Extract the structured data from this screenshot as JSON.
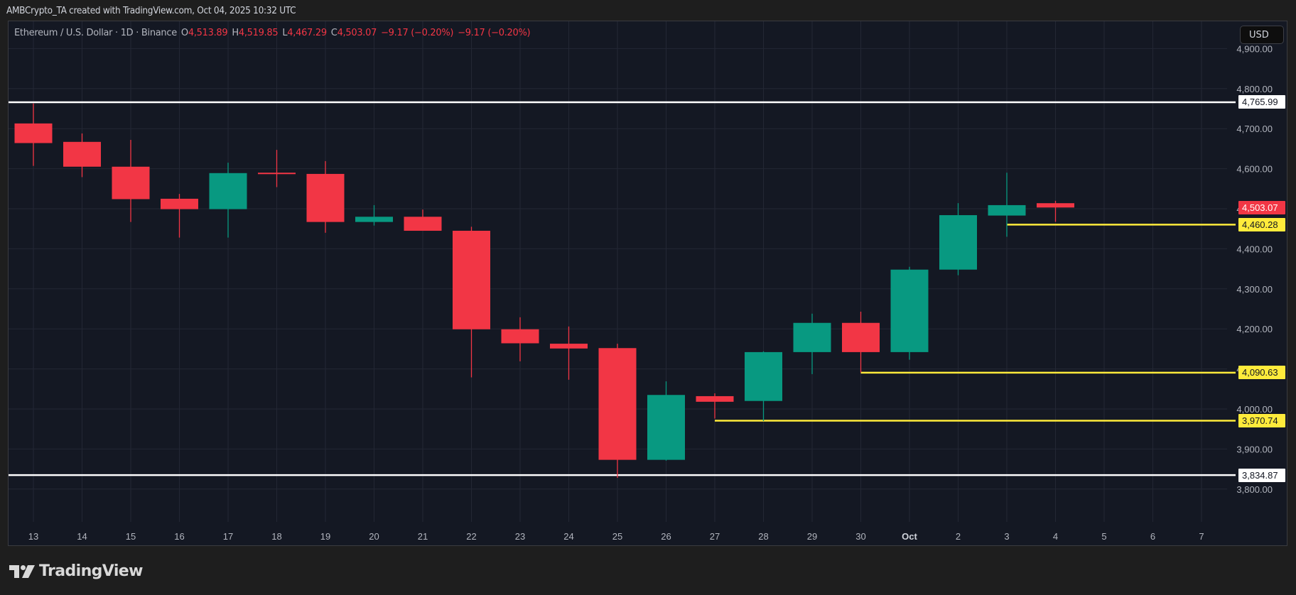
{
  "attribution": "AMBCrypto_TA created with TradingView.com, Oct 04, 2025 10:32 UTC",
  "legend": {
    "symbol": "Ethereum / U.S. Dollar · 1D · Binance",
    "open_label": "O",
    "open": "4,513.89",
    "high_label": "H",
    "high": "4,519.85",
    "low_label": "L",
    "low": "4,467.29",
    "close_label": "C",
    "close": "4,503.07",
    "change1": "−9.17 (−0.20%)",
    "change2": "−9.17 (−0.20%)"
  },
  "currency_button": "USD",
  "logo": {
    "icon": "tradingview-logo-icon",
    "text": "TradingView"
  },
  "colors": {
    "up": "#089981",
    "down": "#f23645",
    "level_white": "#ffffff",
    "level_yellow": "#ffeb3b",
    "grid": "#232734",
    "axis_text": "#b2b5be"
  },
  "price_labels": {
    "current": "4,503.07",
    "levels": [
      "4,765.99",
      "4,460.28",
      "4,090.63",
      "3,970.74",
      "3,834.87"
    ]
  },
  "chart_data": {
    "type": "candlestick",
    "title": "Ethereum / U.S. Dollar · 1D · Binance",
    "xlabel": "",
    "ylabel": "USD",
    "ylim": [
      3750,
      4950
    ],
    "grid": true,
    "yticks": [
      "3,800.00",
      "3,900.00",
      "4,000.00",
      "4,100.00",
      "4,200.00",
      "4,300.00",
      "4,400.00",
      "4,500.00",
      "4,600.00",
      "4,700.00",
      "4,800.00",
      "4,900.00"
    ],
    "xticks": [
      "13",
      "14",
      "15",
      "16",
      "17",
      "18",
      "19",
      "20",
      "21",
      "22",
      "23",
      "24",
      "25",
      "26",
      "27",
      "28",
      "29",
      "30",
      "Oct",
      "2",
      "3",
      "4",
      "5",
      "6",
      "7"
    ],
    "candles": [
      {
        "date": "Sep 13",
        "open": 4713,
        "high": 4763,
        "low": 4607,
        "close": 4664
      },
      {
        "date": "Sep 14",
        "open": 4667,
        "high": 4688,
        "low": 4579,
        "close": 4605
      },
      {
        "date": "Sep 15",
        "open": 4605,
        "high": 4672,
        "low": 4467,
        "close": 4524
      },
      {
        "date": "Sep 16",
        "open": 4525,
        "high": 4537,
        "low": 4428,
        "close": 4499
      },
      {
        "date": "Sep 17",
        "open": 4499,
        "high": 4615,
        "low": 4428,
        "close": 4589
      },
      {
        "date": "Sep 18",
        "open": 4590,
        "high": 4647,
        "low": 4554,
        "close": 4587
      },
      {
        "date": "Sep 19",
        "open": 4587,
        "high": 4619,
        "low": 4440,
        "close": 4467
      },
      {
        "date": "Sep 20",
        "open": 4467,
        "high": 4509,
        "low": 4458,
        "close": 4480
      },
      {
        "date": "Sep 21",
        "open": 4480,
        "high": 4498,
        "low": 4445,
        "close": 4445
      },
      {
        "date": "Sep 22",
        "open": 4445,
        "high": 4455,
        "low": 4079,
        "close": 4199
      },
      {
        "date": "Sep 23",
        "open": 4199,
        "high": 4229,
        "low": 4119,
        "close": 4164
      },
      {
        "date": "Sep 24",
        "open": 4163,
        "high": 4206,
        "low": 4073,
        "close": 4151
      },
      {
        "date": "Sep 25",
        "open": 4152,
        "high": 4163,
        "low": 3828,
        "close": 3873
      },
      {
        "date": "Sep 26",
        "open": 3873,
        "high": 4069,
        "low": 3871,
        "close": 4035
      },
      {
        "date": "Sep 27",
        "open": 4032,
        "high": 4039,
        "low": 3976,
        "close": 4018
      },
      {
        "date": "Sep 28",
        "open": 4020,
        "high": 4144,
        "low": 3970,
        "close": 4142
      },
      {
        "date": "Sep 29",
        "open": 4142,
        "high": 4238,
        "low": 4087,
        "close": 4215
      },
      {
        "date": "Sep 30",
        "open": 4215,
        "high": 4243,
        "low": 4091,
        "close": 4142
      },
      {
        "date": "Oct 1",
        "open": 4142,
        "high": 4355,
        "low": 4123,
        "close": 4348
      },
      {
        "date": "Oct 2",
        "open": 4348,
        "high": 4514,
        "low": 4334,
        "close": 4484
      },
      {
        "date": "Oct 3",
        "open": 4483,
        "high": 4590,
        "low": 4430,
        "close": 4509
      },
      {
        "date": "Oct 4",
        "open": 4513.89,
        "high": 4519.85,
        "low": 4467.29,
        "close": 4503.07
      }
    ],
    "horizontal_lines": [
      {
        "price": 4765.99,
        "color": "white",
        "start": "full"
      },
      {
        "price": 3834.87,
        "color": "white",
        "start": "full"
      },
      {
        "price": 4460.28,
        "color": "yellow",
        "start": "Oct 3"
      },
      {
        "price": 4090.63,
        "color": "yellow",
        "start": "Sep 30"
      },
      {
        "price": 3970.74,
        "color": "yellow",
        "start": "Sep 27"
      }
    ],
    "last_price": 4503.07
  }
}
